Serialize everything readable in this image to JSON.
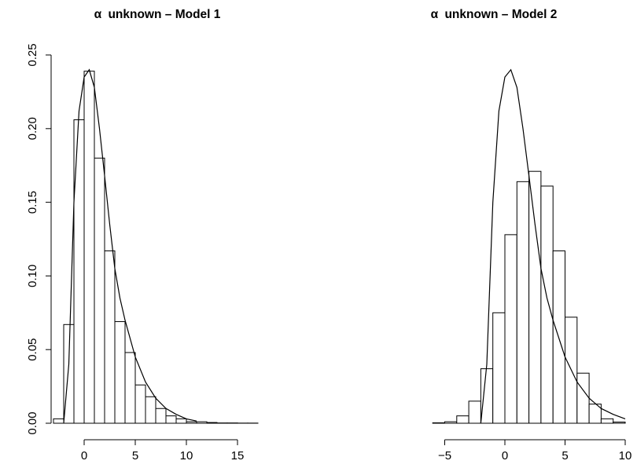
{
  "chart_data": [
    {
      "type": "bar",
      "title_symbol": "α",
      "title_text": "unknown – Model 1",
      "xlabel": "",
      "ylabel": "",
      "xlim": [
        -4,
        18
      ],
      "ylim": [
        0,
        0.25
      ],
      "x_ticks": [
        0,
        5,
        10,
        15
      ],
      "x_tick_labels": [
        "0",
        "5",
        "10",
        "15"
      ],
      "y_ticks": [
        0.0,
        0.05,
        0.1,
        0.15,
        0.2,
        0.25
      ],
      "y_tick_labels": [
        "0.00",
        "0.05",
        "0.10",
        "0.15",
        "0.20",
        "0.25"
      ],
      "bin_width": 1,
      "bin_starts": [
        -3,
        -2,
        -1,
        0,
        1,
        2,
        3,
        4,
        5,
        6,
        7,
        8,
        9,
        10,
        11,
        12,
        13,
        14,
        15,
        16
      ],
      "values": [
        0.003,
        0.067,
        0.206,
        0.239,
        0.18,
        0.117,
        0.069,
        0.048,
        0.026,
        0.018,
        0.01,
        0.005,
        0.003,
        0.001,
        0.001,
        0.0005,
        0.0002,
        0.0002,
        0.0001,
        0.0001
      ],
      "curve": {
        "x": [
          -2,
          -1.5,
          -1,
          -0.5,
          0,
          0.5,
          1,
          1.5,
          2,
          2.5,
          3,
          3.5,
          4,
          5,
          6,
          7,
          8,
          9,
          10,
          11
        ],
        "y": [
          0.0,
          0.04,
          0.15,
          0.212,
          0.235,
          0.24,
          0.228,
          0.2,
          0.168,
          0.135,
          0.105,
          0.085,
          0.07,
          0.045,
          0.028,
          0.017,
          0.01,
          0.006,
          0.003,
          0.0015
        ]
      }
    },
    {
      "type": "bar",
      "title_symbol": "α",
      "title_text": "unknown – Model 2",
      "xlabel": "",
      "ylabel": "",
      "xlim": [
        -7,
        10
      ],
      "ylim": [
        0,
        0.25
      ],
      "x_ticks": [
        -5,
        0,
        5,
        10
      ],
      "x_tick_labels": [
        "−5",
        "0",
        "5",
        "10"
      ],
      "bin_width": 1,
      "bin_starts": [
        -6,
        -5,
        -4,
        -3,
        -2,
        -1,
        0,
        1,
        2,
        3,
        4,
        5,
        6,
        7,
        8,
        9
      ],
      "values": [
        0.0003,
        0.001,
        0.005,
        0.015,
        0.037,
        0.075,
        0.128,
        0.164,
        0.171,
        0.161,
        0.117,
        0.072,
        0.034,
        0.013,
        0.003,
        0.0008
      ],
      "curve": {
        "x": [
          -2,
          -1.5,
          -1,
          -0.5,
          0,
          0.5,
          1,
          1.5,
          2,
          2.5,
          3,
          3.5,
          4,
          5,
          6,
          7,
          8,
          9,
          10
        ],
        "y": [
          0.0,
          0.04,
          0.15,
          0.212,
          0.235,
          0.24,
          0.228,
          0.2,
          0.168,
          0.135,
          0.105,
          0.085,
          0.07,
          0.045,
          0.028,
          0.017,
          0.01,
          0.006,
          0.003
        ]
      }
    }
  ]
}
